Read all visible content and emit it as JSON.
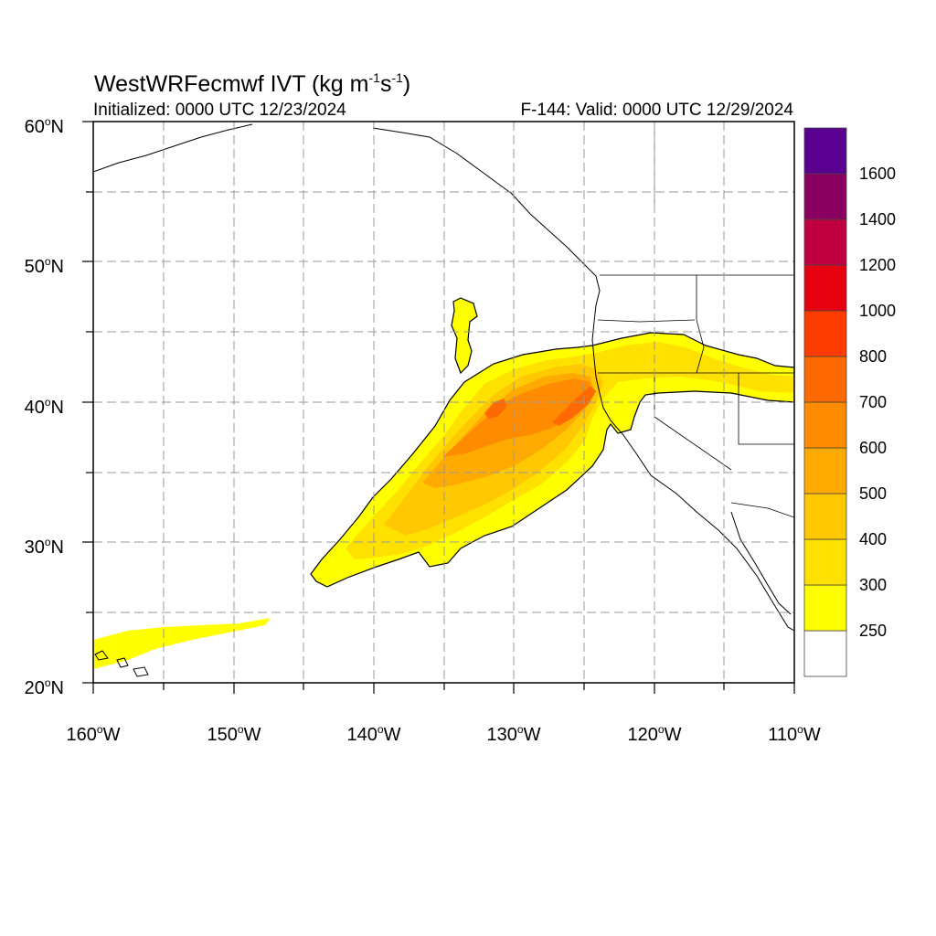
{
  "header": {
    "title_main": "WestWRFecmwf IVT (kg m",
    "title_exp1": "-1",
    "title_mid": "s",
    "title_exp2": "-1",
    "title_end": ")",
    "initialized": "Initialized: 0000 UTC 12/23/2024",
    "valid": "F-144: Valid: 0000 UTC 12/29/2024"
  },
  "map": {
    "lat_range": [
      20,
      60
    ],
    "lon_range": [
      -160,
      -110
    ],
    "grid": "dashed gray every 5°",
    "lat_labels": [
      {
        "deg": "60",
        "suffix": "N"
      },
      {
        "deg": "50",
        "suffix": "N"
      },
      {
        "deg": "40",
        "suffix": "N"
      },
      {
        "deg": "30",
        "suffix": "N"
      },
      {
        "deg": "20",
        "suffix": "N"
      }
    ],
    "lon_labels": [
      {
        "deg": "160",
        "suffix": "W"
      },
      {
        "deg": "150",
        "suffix": "W"
      },
      {
        "deg": "140",
        "suffix": "W"
      },
      {
        "deg": "130",
        "suffix": "W"
      },
      {
        "deg": "120",
        "suffix": "W"
      },
      {
        "deg": "110",
        "suffix": "W"
      }
    ]
  },
  "colorbar": {
    "labels": [
      "250",
      "300",
      "400",
      "500",
      "600",
      "700",
      "800",
      "1000",
      "1200",
      "1400",
      "1600"
    ],
    "colors_bottom_to_top": [
      "#ffffff",
      "#ffff00",
      "#ffe100",
      "#ffc800",
      "#ffaa00",
      "#ff8c00",
      "#ff6a00",
      "#ff3c00",
      "#e60010",
      "#c00040",
      "#8a0060",
      "#5a0090"
    ]
  },
  "colors": {
    "ivt_250": "#ffff00",
    "ivt_300": "#ffe100",
    "ivt_400": "#ffc800",
    "ivt_500": "#ffaa00",
    "ivt_600": "#ff8c00",
    "ivt_700": "#ff6a00",
    "coast": "#000000",
    "grid": "#999999"
  }
}
